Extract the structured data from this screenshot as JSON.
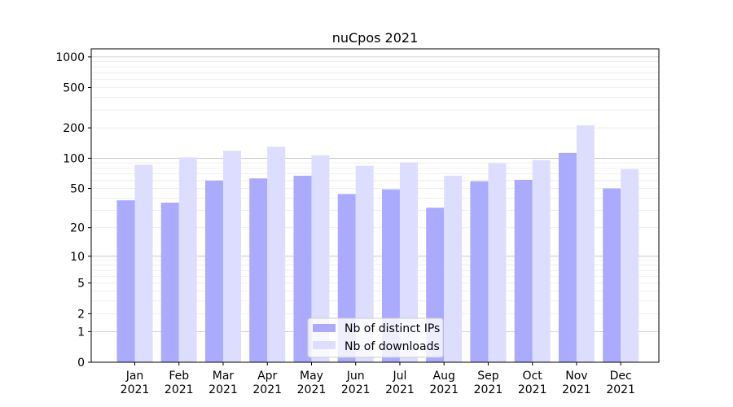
{
  "chart_data": {
    "type": "bar",
    "title": "nuCpos 2021",
    "xlabel": "",
    "ylabel": "",
    "yscale": "symlog",
    "ylim": [
      0,
      1200
    ],
    "grid": true,
    "legend_position": "bottom-center",
    "categories": [
      [
        "Jan",
        "2021"
      ],
      [
        "Feb",
        "2021"
      ],
      [
        "Mar",
        "2021"
      ],
      [
        "Apr",
        "2021"
      ],
      [
        "May",
        "2021"
      ],
      [
        "Jun",
        "2021"
      ],
      [
        "Jul",
        "2021"
      ],
      [
        "Aug",
        "2021"
      ],
      [
        "Sep",
        "2021"
      ],
      [
        "Oct",
        "2021"
      ],
      [
        "Nov",
        "2021"
      ],
      [
        "Dec",
        "2021"
      ]
    ],
    "yticks": [
      0,
      1,
      2,
      5,
      10,
      20,
      50,
      100,
      200,
      500,
      1000
    ],
    "series": [
      {
        "name": "Nb of distinct IPs",
        "color": "#aaaaff",
        "values": [
          38,
          36,
          60,
          63,
          67,
          44,
          49,
          32,
          59,
          61,
          113,
          50
        ]
      },
      {
        "name": "Nb of downloads",
        "color": "#ddddff",
        "values": [
          86,
          102,
          119,
          130,
          107,
          84,
          91,
          67,
          89,
          96,
          212,
          78
        ]
      }
    ]
  }
}
